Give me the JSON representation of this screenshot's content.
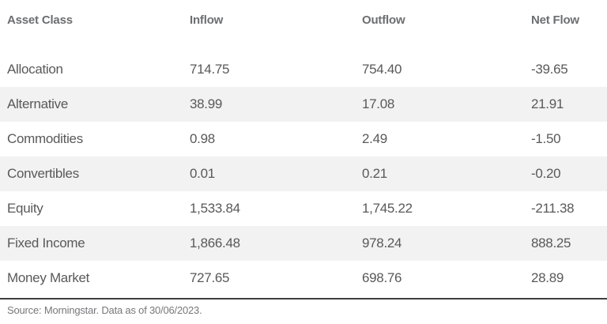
{
  "table": {
    "columns": [
      "Asset Class",
      "Inflow",
      "Outflow",
      "Net Flow"
    ],
    "rows": [
      {
        "asset_class": "Allocation",
        "inflow": "714.75",
        "outflow": "754.40",
        "net_flow": "-39.65"
      },
      {
        "asset_class": "Alternative",
        "inflow": "38.99",
        "outflow": "17.08",
        "net_flow": "21.91"
      },
      {
        "asset_class": "Commodities",
        "inflow": "0.98",
        "outflow": "2.49",
        "net_flow": "-1.50"
      },
      {
        "asset_class": "Convertibles",
        "inflow": "0.01",
        "outflow": "0.21",
        "net_flow": "-0.20"
      },
      {
        "asset_class": "Equity",
        "inflow": "1,533.84",
        "outflow": "1,745.22",
        "net_flow": "-211.38"
      },
      {
        "asset_class": "Fixed Income",
        "inflow": "1,866.48",
        "outflow": "978.24",
        "net_flow": "888.25"
      },
      {
        "asset_class": "Money Market",
        "inflow": "727.65",
        "outflow": "698.76",
        "net_flow": "28.89"
      }
    ]
  },
  "footer": {
    "source_text": "Source: Morningstar. Data as of 30/06/2023."
  },
  "colors": {
    "header_text": "#6d6e71",
    "body_text": "#59595b",
    "stripe": "#f2f2f2",
    "rule": "#3e3e40",
    "footer_text": "#77787b",
    "background": "#ffffff"
  },
  "chart_data": {
    "type": "table",
    "title": "",
    "columns": [
      "Asset Class",
      "Inflow",
      "Outflow",
      "Net Flow"
    ],
    "rows": [
      [
        "Allocation",
        714.75,
        754.4,
        -39.65
      ],
      [
        "Alternative",
        38.99,
        17.08,
        21.91
      ],
      [
        "Commodities",
        0.98,
        2.49,
        -1.5
      ],
      [
        "Convertibles",
        0.01,
        0.21,
        -0.2
      ],
      [
        "Equity",
        1533.84,
        1745.22,
        -211.38
      ],
      [
        "Fixed Income",
        1866.48,
        978.24,
        888.25
      ],
      [
        "Money Market",
        727.65,
        698.76,
        28.89
      ]
    ],
    "source": "Source: Morningstar. Data as of 30/06/2023.",
    "layout_hints": "left-aligned columns, zebra striping on even rows, dark rule above source note"
  }
}
